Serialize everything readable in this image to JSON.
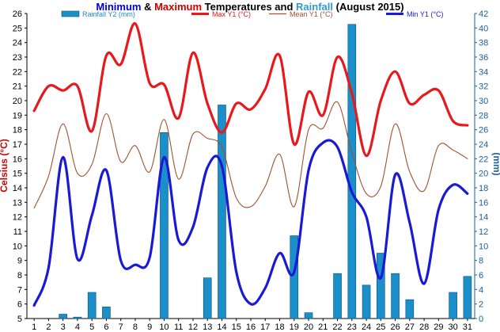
{
  "chart_data": {
    "type": "bar+line",
    "title": {
      "parts": [
        {
          "text": "Minimum",
          "color": "#0000cc"
        },
        {
          "text": " & ",
          "color": "#000000"
        },
        {
          "text": "Maximum",
          "color": "#cc0000"
        },
        {
          "text": " Temperatures and ",
          "color": "#000000"
        },
        {
          "text": "Rainfall",
          "color": "#3399cc"
        },
        {
          "text": " (August 2015)",
          "color": "#000000"
        }
      ]
    },
    "ylabel_left": "Celsius (°C)",
    "ylabel_right": "(mm)",
    "ylim_left": [
      5,
      26
    ],
    "ylim_right": [
      0,
      42
    ],
    "x": [
      1,
      2,
      3,
      4,
      5,
      6,
      7,
      8,
      9,
      10,
      11,
      12,
      13,
      14,
      15,
      16,
      17,
      18,
      19,
      20,
      21,
      22,
      23,
      24,
      25,
      26,
      27,
      28,
      29,
      30,
      31
    ],
    "y_ticks_left": [
      5,
      6,
      7,
      8,
      9,
      10,
      11,
      12,
      13,
      14,
      15,
      16,
      17,
      18,
      19,
      20,
      21,
      22,
      23,
      24,
      25,
      26
    ],
    "y_ticks_right": [
      0,
      2,
      4,
      6,
      8,
      10,
      12,
      14,
      16,
      18,
      20,
      22,
      24,
      26,
      28,
      30,
      32,
      34,
      36,
      38,
      40,
      42
    ],
    "grid": false,
    "legend_position": "top",
    "series": [
      {
        "name": "Rainfall Y2 (mm)",
        "kind": "bar",
        "axis": "right",
        "color": "#1a8fc9",
        "values": [
          0,
          0,
          0.6,
          0.2,
          3.6,
          1.6,
          0,
          0,
          0,
          25.6,
          0,
          0,
          5.6,
          29.4,
          0,
          0,
          0,
          0,
          11.4,
          0.8,
          0,
          6.2,
          40.5,
          4.6,
          9.0,
          6.2,
          2.6,
          0,
          0,
          3.6,
          5.8
        ]
      },
      {
        "name": "Max Y1 (°C)",
        "kind": "line",
        "axis": "left",
        "color": "#e8191d",
        "values": [
          19.3,
          21.0,
          20.7,
          21.0,
          17.9,
          23.1,
          22.5,
          25.3,
          21.2,
          21.1,
          18.8,
          23.3,
          19.8,
          17.8,
          19.8,
          19.4,
          20.8,
          23.1,
          17.0,
          20.6,
          19.0,
          23.0,
          20.5,
          16.2,
          20.0,
          22.0,
          19.8,
          20.4,
          20.7,
          18.6,
          18.3
        ]
      },
      {
        "name": "Mean Y1 (°C)",
        "kind": "line",
        "axis": "left",
        "color": "#a0522d",
        "values": [
          12.6,
          14.8,
          18.4,
          15.0,
          15.6,
          19.1,
          15.8,
          16.9,
          15.1,
          18.7,
          14.6,
          17.7,
          17.4,
          16.8,
          13.3,
          12.7,
          14.1,
          16.3,
          12.7,
          18.0,
          18.1,
          19.9,
          16.4,
          13.6,
          14.1,
          18.4,
          15.1,
          13.8,
          16.9,
          16.6,
          16.0
        ]
      },
      {
        "name": "Min Y1 (°C)",
        "kind": "line",
        "axis": "left",
        "color": "#1a1ad6",
        "values": [
          5.9,
          8.5,
          16.1,
          9.1,
          12.1,
          15.2,
          9.0,
          8.7,
          9.2,
          16.1,
          10.4,
          11.3,
          15.4,
          15.5,
          8.2,
          6.0,
          7.1,
          9.5,
          8.2,
          15.2,
          17.1,
          16.8,
          13.7,
          12.0,
          7.8,
          14.9,
          11.6,
          7.4,
          12.5,
          14.2,
          13.6
        ]
      }
    ]
  }
}
